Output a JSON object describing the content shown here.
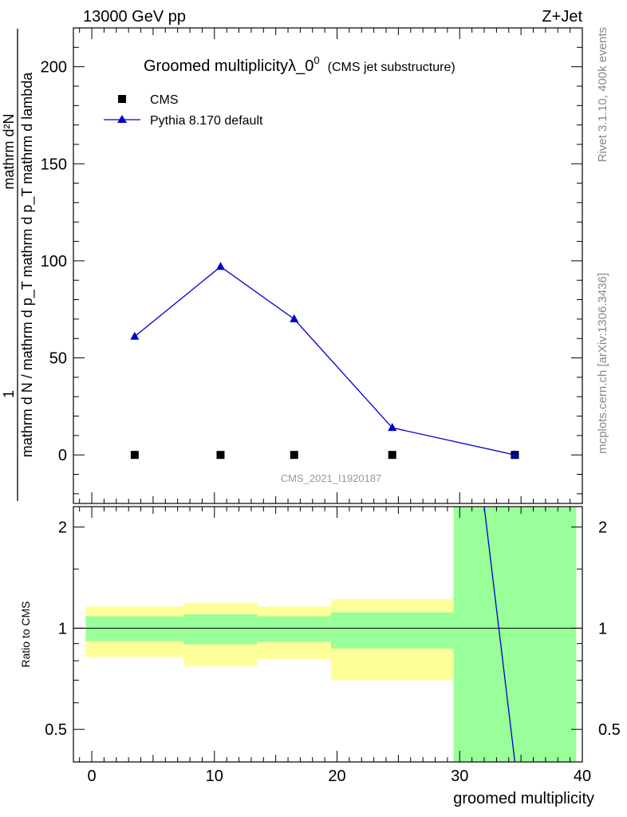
{
  "header": {
    "energy_label": "13000 GeV pp",
    "process_label": "Z+Jet"
  },
  "side_labels": {
    "rivet": "Rivet 3.1.10,  400k events",
    "mcplots": "mcplots.cern.ch [arXiv:1306.3436]"
  },
  "plot": {
    "title": "Groomed multiplicityλ_0",
    "title_sup": "0",
    "title_note": "(CMS jet substructure)",
    "watermark": "CMS_2021_I1920187",
    "ylabel_numerator": "mathrm d²N",
    "ylabel_one": "1",
    "ylabel_denominator": "mathrm d N / mathrm d p_T mathrm d p_T mathrm d lambda",
    "ratio_ylabel": "Ratio to CMS",
    "xlabel": "groomed multiplicity"
  },
  "legend": [
    {
      "label": "CMS",
      "marker": "square",
      "color": "#000000"
    },
    {
      "label": "Pythia 8.170 default",
      "marker": "triangle",
      "color": "#0000cc"
    }
  ],
  "chart_data": [
    {
      "type": "scatter",
      "panel": "main",
      "xlim": [
        -1.5,
        40
      ],
      "ylim": [
        -25,
        220
      ],
      "x_ticks": [
        0,
        10,
        20,
        30,
        40
      ],
      "y_ticks": [
        0,
        50,
        100,
        150,
        200
      ],
      "series": [
        {
          "name": "CMS",
          "x": [
            3.5,
            10.5,
            16.5,
            24.5,
            34.5
          ],
          "y": [
            0,
            0,
            0,
            0,
            0
          ]
        },
        {
          "name": "Pythia 8.170 default",
          "x": [
            3.5,
            10.5,
            16.5,
            24.5,
            34.5
          ],
          "y": [
            61,
            97,
            70,
            14,
            0
          ],
          "yerr": [
            0.8,
            1.5,
            0.8,
            0.5,
            0.1
          ]
        }
      ]
    },
    {
      "type": "area",
      "panel": "ratio",
      "xlim": [
        -1.5,
        40
      ],
      "ylim": [
        0.4,
        2.3
      ],
      "y_ticks": [
        0.5,
        1,
        2
      ],
      "bands": [
        {
          "xlo": -0.5,
          "xhi": 7.5,
          "stat": [
            0.915,
            1.085
          ],
          "total": [
            0.82,
            1.16
          ]
        },
        {
          "xlo": 7.5,
          "xhi": 13.5,
          "stat": [
            0.895,
            1.1
          ],
          "total": [
            0.77,
            1.19
          ]
        },
        {
          "xlo": 13.5,
          "xhi": 19.5,
          "stat": [
            0.91,
            1.085
          ],
          "total": [
            0.81,
            1.16
          ]
        },
        {
          "xlo": 19.5,
          "xhi": 29.5,
          "stat": [
            0.87,
            1.115
          ],
          "total": [
            0.7,
            1.22
          ]
        },
        {
          "xlo": 29.5,
          "xhi": 39.5,
          "stat": [
            0.4,
            2.3
          ],
          "total": [
            0.4,
            2.3
          ]
        }
      ],
      "series": [
        {
          "name": "Pythia 8.170 default",
          "x": [
            32.0,
            34.5
          ],
          "y": [
            2.3,
            0.4
          ]
        }
      ]
    }
  ]
}
